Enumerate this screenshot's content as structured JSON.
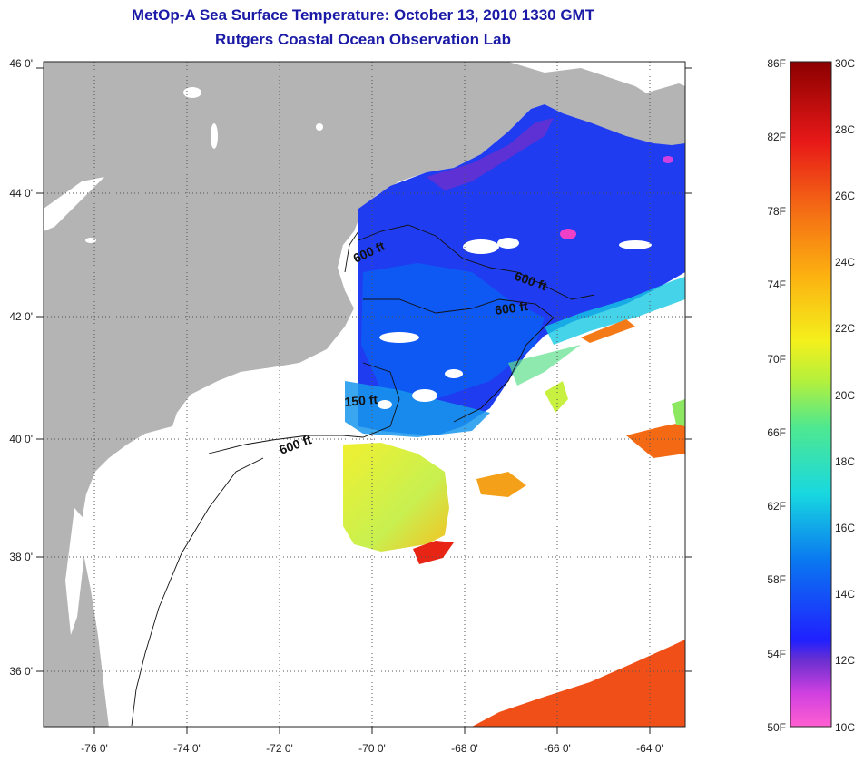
{
  "header": {
    "title": "MetOp-A Sea Surface Temperature:  October 13, 2010 1330 GMT",
    "subtitle": "Rutgers Coastal Ocean Observation Lab"
  },
  "map": {
    "lon_ticks": [
      "-76 0'",
      "-74 0'",
      "-72 0'",
      "-70 0'",
      "-68 0'",
      "-66 0'",
      "-64 0'"
    ],
    "lat_ticks": [
      "46 0'",
      "44 0'",
      "42 0'",
      "40 0'",
      "38 0'",
      "36 0'"
    ],
    "lon_range": [
      -77.0,
      -63.0
    ],
    "lat_range": [
      35.0,
      46.0
    ],
    "contour_labels": [
      "600 ft",
      "600 ft",
      "600 ft",
      "150 ft",
      "600 ft"
    ],
    "colors": {
      "land": "#b4b4b4",
      "no_data": "#ffffff",
      "grid": "#555555"
    }
  },
  "colorbar": {
    "fahrenheit_labels": [
      "86F",
      "82F",
      "78F",
      "74F",
      "70F",
      "66F",
      "62F",
      "58F",
      "54F",
      "50F"
    ],
    "celsius_labels": [
      "30C",
      "28C",
      "26C",
      "24C",
      "22C",
      "20C",
      "18C",
      "16C",
      "14C",
      "12C",
      "10C"
    ],
    "range_c": [
      10,
      30
    ]
  }
}
